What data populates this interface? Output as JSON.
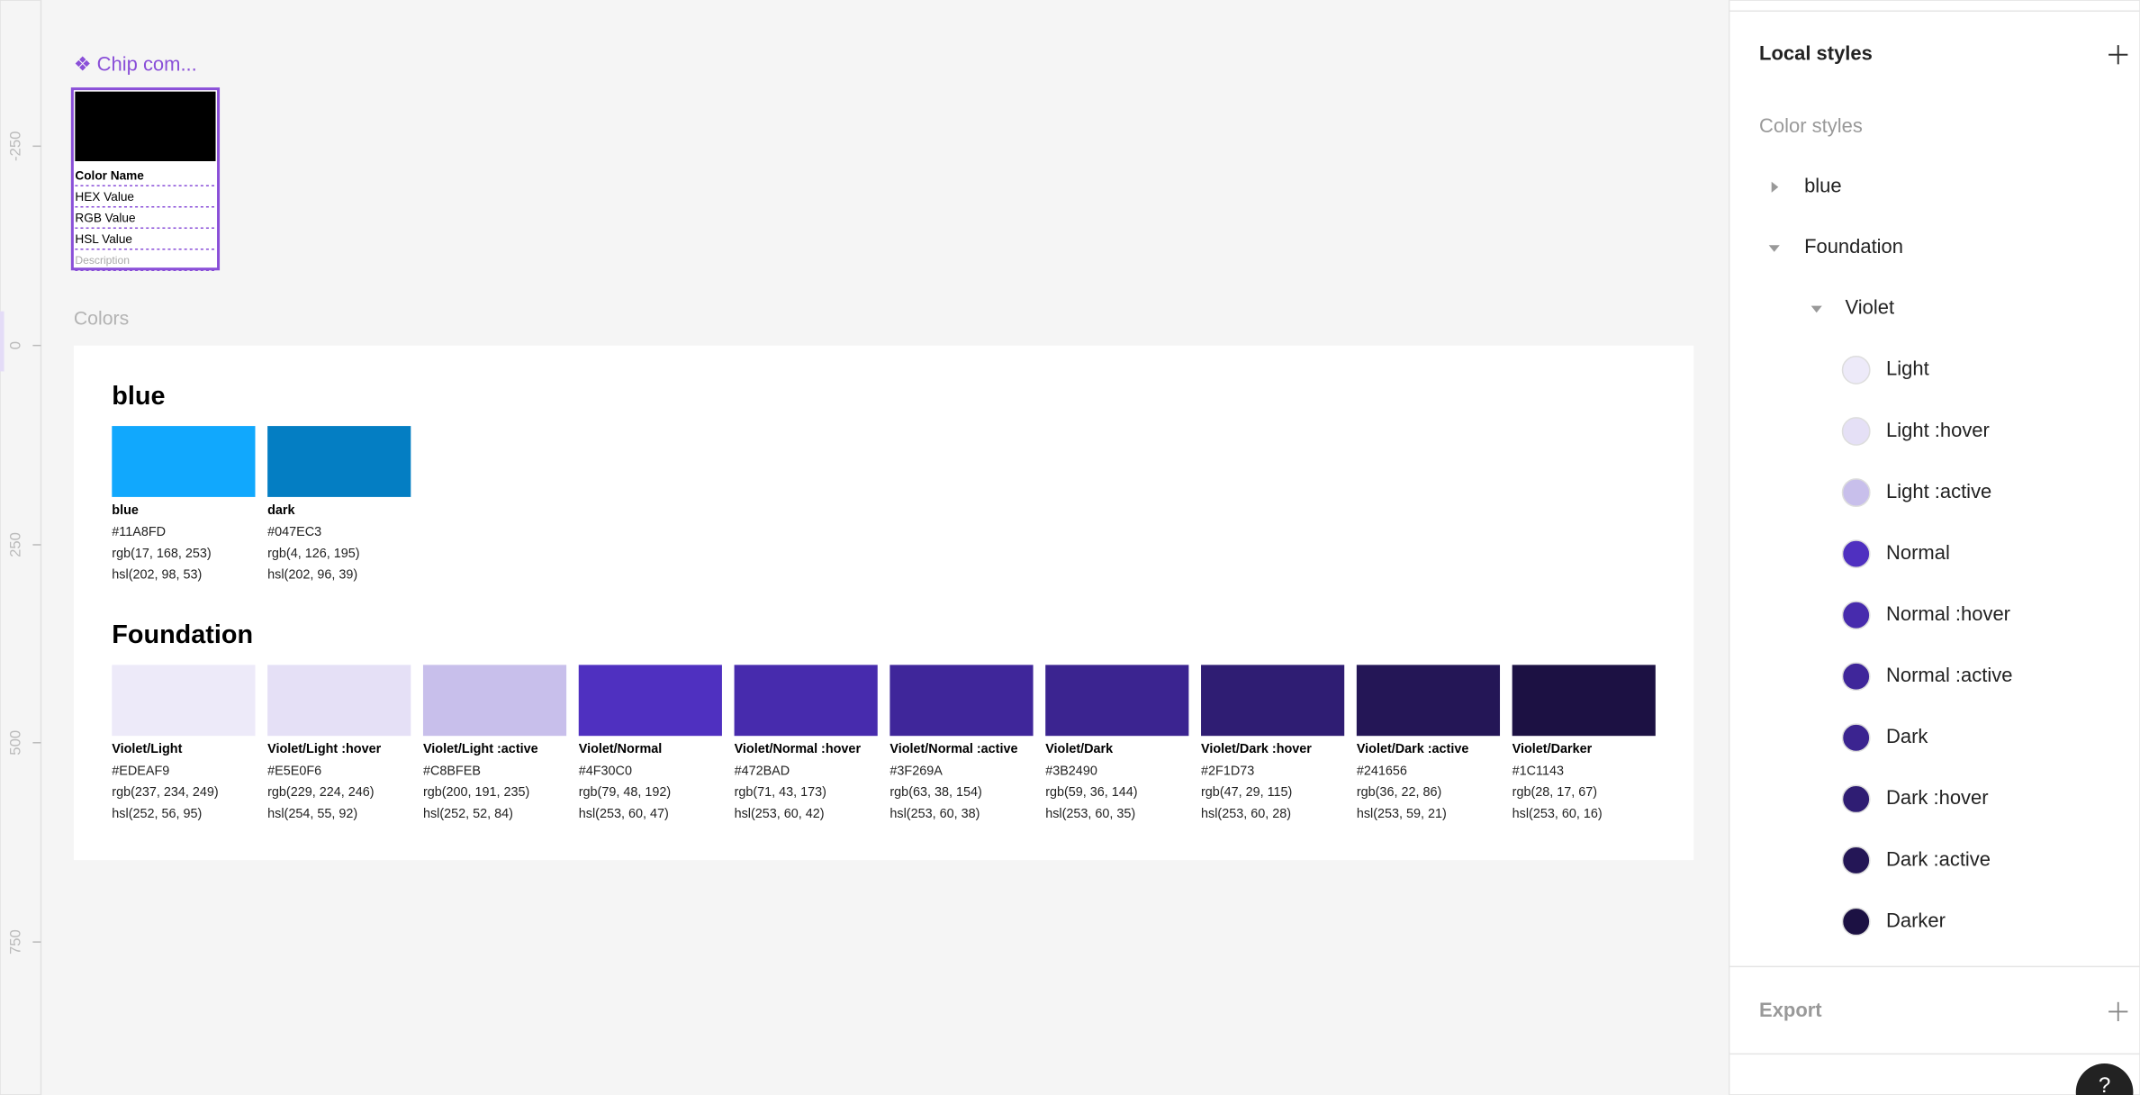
{
  "ruler": {
    "labels": [
      "-250",
      "0",
      "250",
      "500",
      "750"
    ]
  },
  "component": {
    "title": "❖ Chip com...",
    "fields": [
      "Color Name",
      "HEX Value",
      "RGB Value",
      "HSL Value",
      "Description"
    ]
  },
  "frame": {
    "title": "Colors",
    "groups": [
      {
        "name": "blue",
        "swatches": [
          {
            "name": "blue",
            "hex": "#11A8FD",
            "rgb": "rgb(17, 168, 253)",
            "hsl": "hsl(202, 98, 53)"
          },
          {
            "name": "dark",
            "hex": "#047EC3",
            "rgb": "rgb(4, 126, 195)",
            "hsl": "hsl(202, 96, 39)"
          }
        ]
      },
      {
        "name": "Foundation",
        "swatches": [
          {
            "name": "Violet/Light",
            "hex": "#EDEAF9",
            "rgb": "rgb(237, 234, 249)",
            "hsl": "hsl(252, 56, 95)"
          },
          {
            "name": "Violet/Light :hover",
            "hex": "#E5E0F6",
            "rgb": "rgb(229, 224, 246)",
            "hsl": "hsl(254, 55, 92)"
          },
          {
            "name": "Violet/Light :active",
            "hex": "#C8BFEB",
            "rgb": "rgb(200, 191, 235)",
            "hsl": "hsl(252, 52, 84)"
          },
          {
            "name": "Violet/Normal",
            "hex": "#4F30C0",
            "rgb": "rgb(79, 48, 192)",
            "hsl": "hsl(253, 60, 47)"
          },
          {
            "name": "Violet/Normal :hover",
            "hex": "#472BAD",
            "rgb": "rgb(71, 43, 173)",
            "hsl": "hsl(253, 60, 42)"
          },
          {
            "name": "Violet/Normal :active",
            "hex": "#3F269A",
            "rgb": "rgb(63, 38, 154)",
            "hsl": "hsl(253, 60, 38)"
          },
          {
            "name": "Violet/Dark",
            "hex": "#3B2490",
            "rgb": "rgb(59, 36, 144)",
            "hsl": "hsl(253, 60, 35)"
          },
          {
            "name": "Violet/Dark :hover",
            "hex": "#2F1D73",
            "rgb": "rgb(47, 29, 115)",
            "hsl": "hsl(253, 60, 28)"
          },
          {
            "name": "Violet/Dark :active",
            "hex": "#241656",
            "rgb": "rgb(36, 22, 86)",
            "hsl": "hsl(253, 59, 21)"
          },
          {
            "name": "Violet/Darker",
            "hex": "#1C1143",
            "rgb": "rgb(28, 17, 67)",
            "hsl": "hsl(253, 60, 16)"
          }
        ]
      }
    ]
  },
  "sidebar": {
    "title": "Local styles",
    "section": "Color styles",
    "groups": [
      "blue",
      "Foundation"
    ],
    "subgroup": "Violet",
    "items": [
      "Light",
      "Light :hover",
      "Light :active",
      "Normal",
      "Normal :hover",
      "Normal :active",
      "Dark",
      "Dark :hover",
      "Dark :active",
      "Darker"
    ],
    "export": "Export",
    "help": "?"
  }
}
